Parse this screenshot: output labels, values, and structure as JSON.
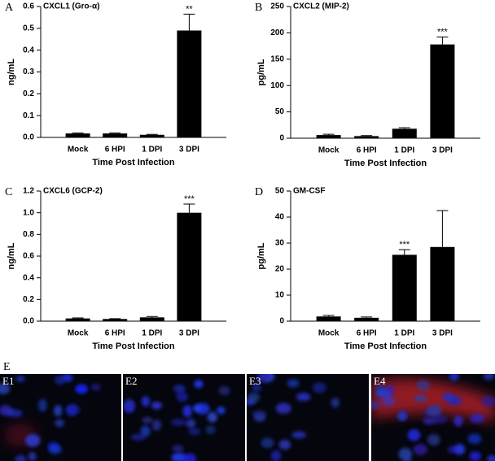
{
  "chart_data": [
    {
      "type": "bar",
      "panel_label": "A",
      "title": "CXCL1 (Gro-α)",
      "y_label": "ng/mL",
      "x_label": "Time Post Infection",
      "color": "#000000",
      "categories": [
        "Mock",
        "6 HPI",
        "1 DPI",
        "3 DPI"
      ],
      "values": [
        0.018,
        0.018,
        0.012,
        0.49
      ],
      "errors": [
        0.002,
        0.002,
        0.002,
        0.075
      ],
      "annotations": [
        null,
        null,
        null,
        "**"
      ],
      "ylim": [
        0,
        0.6
      ],
      "yticks": [
        {
          "value": 0,
          "label": "0.0"
        },
        0.1,
        0.2,
        0.3,
        0.4,
        0.5,
        0.6
      ]
    },
    {
      "type": "bar",
      "panel_label": "B",
      "title": "CXCL2 (MIP-2)",
      "y_label": "pg/mL",
      "x_label": "Time Post Infection",
      "color": "#000000",
      "categories": [
        "Mock",
        "6 HPI",
        "1 DPI",
        "3 DPI"
      ],
      "values": [
        6,
        4,
        18,
        178
      ],
      "errors": [
        1.5,
        1,
        2,
        14
      ],
      "annotations": [
        null,
        null,
        null,
        "***"
      ],
      "ylim": [
        0,
        250
      ],
      "yticks": [
        0,
        50,
        100,
        150,
        200,
        250
      ]
    },
    {
      "type": "bar",
      "panel_label": "C",
      "title": "CXCL6 (GCP-2)",
      "y_label": "ng/mL",
      "x_label": "Time Post Infection",
      "color": "#000000",
      "categories": [
        "Mock",
        "6 HPI",
        "1 DPI",
        "3 DPI"
      ],
      "values": [
        0.025,
        0.02,
        0.035,
        1.0
      ],
      "errors": [
        0.005,
        0.003,
        0.008,
        0.08
      ],
      "annotations": [
        null,
        null,
        null,
        "***"
      ],
      "ylim": [
        0,
        1.2
      ],
      "yticks": [
        {
          "value": 0,
          "label": "0.0"
        },
        0.2,
        0.4,
        0.6,
        0.8,
        {
          "value": 1,
          "label": "1.0"
        },
        1.2
      ]
    },
    {
      "type": "bar",
      "panel_label": "D",
      "title": "GM-CSF",
      "y_label": "pg/mL",
      "x_label": "Time Post Infection",
      "color": "#000000",
      "categories": [
        "Mock",
        "6 HPI",
        "1 DPI",
        "3 DPI"
      ],
      "values": [
        1.8,
        1.3,
        25.5,
        28.5
      ],
      "errors": [
        0.4,
        0.3,
        2.0,
        14
      ],
      "annotations": [
        null,
        null,
        "***",
        null
      ],
      "ylim": [
        0,
        50
      ],
      "yticks": [
        0,
        10,
        20,
        30,
        40,
        50
      ]
    }
  ],
  "figure_e": {
    "panel_label": "E",
    "images": [
      {
        "label": "E1"
      },
      {
        "label": "E2"
      },
      {
        "label": "E3"
      },
      {
        "label": "E4"
      }
    ]
  }
}
